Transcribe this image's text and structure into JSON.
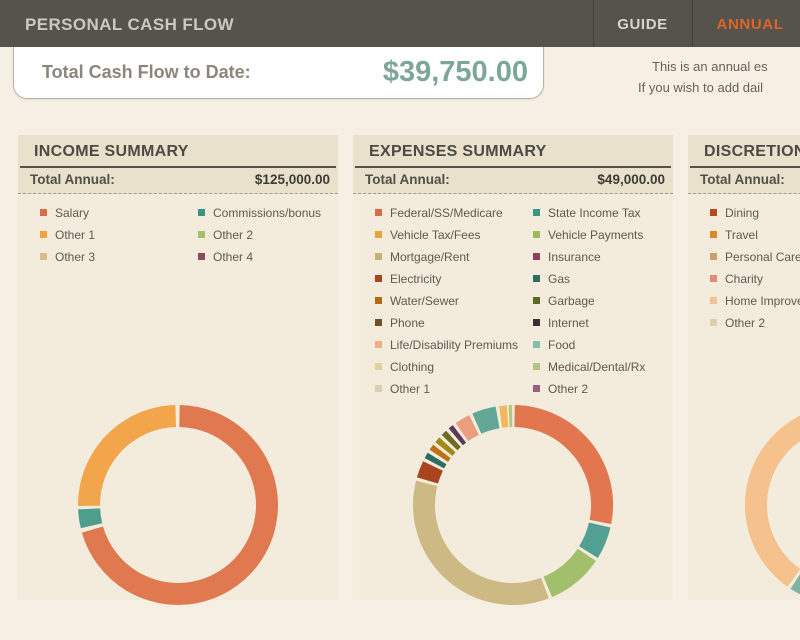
{
  "header": {
    "title": "PERSONAL CASH FLOW",
    "tabs": [
      {
        "label": "GUIDE",
        "active": false
      },
      {
        "label": "ANNUAL",
        "active": true
      }
    ]
  },
  "summary_card": {
    "label": "Total Cash Flow to Date:",
    "value": "$39,750.00"
  },
  "note": {
    "line1": "This is an annual es",
    "line2": "If you wish to add dail"
  },
  "colors": {
    "header_bg": "#55534b",
    "active_tab": "#de6527",
    "cash_value": "#7ca698",
    "page_bg": "#f6f0e4",
    "panel_band": "#eae1cc"
  },
  "panels": [
    {
      "title": "INCOME SUMMARY",
      "total_label": "Total Annual:",
      "total_value": "$125,000.00",
      "legend": [
        {
          "label": "Salary",
          "color": "#d96c4b"
        },
        {
          "label": "Commissions/bonus",
          "color": "#3e9484"
        },
        {
          "label": "Other 1",
          "color": "#efa343"
        },
        {
          "label": "Other 2",
          "color": "#a6bf6d"
        },
        {
          "label": "Other 3",
          "color": "#d6bd8b"
        },
        {
          "label": "Other 4",
          "color": "#8c4a63"
        }
      ]
    },
    {
      "title": "EXPENSES SUMMARY",
      "total_label": "Total Annual:",
      "total_value": "$49,000.00",
      "legend": [
        {
          "label": "Federal/SS/Medicare",
          "color": "#d96c4b"
        },
        {
          "label": "State Income Tax",
          "color": "#3e9484"
        },
        {
          "label": "Vehicle Tax/Fees",
          "color": "#e9a33c"
        },
        {
          "label": "Vehicle Payments",
          "color": "#9fb95e"
        },
        {
          "label": "Mortgage/Rent",
          "color": "#c9b173"
        },
        {
          "label": "Insurance",
          "color": "#8e3f5e"
        },
        {
          "label": "Electricity",
          "color": "#a8441e"
        },
        {
          "label": "Gas",
          "color": "#2e6e62"
        },
        {
          "label": "Water/Sewer",
          "color": "#b36b13"
        },
        {
          "label": "Garbage",
          "color": "#5d6b22"
        },
        {
          "label": "Phone",
          "color": "#70502c"
        },
        {
          "label": "Internet",
          "color": "#3f2b3a"
        },
        {
          "label": "Life/Disability Premiums",
          "color": "#efae83"
        },
        {
          "label": "Food",
          "color": "#7fc0ae"
        },
        {
          "label": "Clothing",
          "color": "#e4cf9d"
        },
        {
          "label": "Medical/Dental/Rx",
          "color": "#b3c489"
        },
        {
          "label": "Other 1",
          "color": "#d9cfb4"
        },
        {
          "label": "Other 2",
          "color": "#9a5e80"
        }
      ]
    },
    {
      "title": "DISCRETIONARY SUMMARY",
      "total_label": "Total Annual:",
      "total_value": "",
      "legend": [
        {
          "label": "Dining",
          "color": "#b54a22"
        },
        {
          "label": "Travel",
          "color": "#de8928"
        },
        {
          "label": "Personal Care",
          "color": "#c9a269"
        },
        {
          "label": "Charity",
          "color": "#e18d73"
        },
        {
          "label": "Home Improvement",
          "color": "#f0c295"
        },
        {
          "label": "Other 2",
          "color": "#ded0ac"
        }
      ]
    }
  ],
  "chart_data": [
    {
      "type": "pie",
      "name": "income-donut",
      "style": "donut",
      "center_svg": [
        160,
        105
      ],
      "outer_radius": 100,
      "inner_radius": 78,
      "segments": [
        {
          "label": "Salary",
          "color": "#e0794f",
          "start_deg": 1,
          "end_deg": 254,
          "approx_percent": 70
        },
        {
          "label": "Commissions/bonus",
          "color": "#4d9e8c",
          "start_deg": 256.5,
          "end_deg": 267.5,
          "approx_percent": 3
        },
        {
          "label": "Other 1",
          "color": "#f2a54a",
          "start_deg": 269.5,
          "end_deg": 358.5,
          "approx_percent": 25
        }
      ]
    },
    {
      "type": "pie",
      "name": "expenses-donut",
      "style": "donut",
      "center_svg": [
        160,
        105
      ],
      "outer_radius": 100,
      "inner_radius": 78,
      "segments": [
        {
          "label": "Federal/SS/Medicare",
          "color": "#e2764e",
          "start_deg": 1,
          "end_deg": 101,
          "approx_percent": 28
        },
        {
          "label": "State Income Tax",
          "color": "#52a093",
          "start_deg": 103,
          "end_deg": 122,
          "approx_percent": 5
        },
        {
          "label": "Vehicle Payments",
          "color": "#a2c06b",
          "start_deg": 124,
          "end_deg": 157,
          "approx_percent": 9
        },
        {
          "label": "Mortgage/Rent",
          "color": "#cdb984",
          "start_deg": 159,
          "end_deg": 284,
          "approx_percent": 35
        },
        {
          "label": "Electricity",
          "color": "#a8441e",
          "start_deg": 286,
          "end_deg": 296,
          "approx_percent": 3
        },
        {
          "label": "Gas",
          "color": "#2e6e62",
          "start_deg": 298,
          "end_deg": 301.5,
          "approx_percent": 1
        },
        {
          "label": "Water/Sewer",
          "color": "#bf7112",
          "start_deg": 303.5,
          "end_deg": 307,
          "approx_percent": 1
        },
        {
          "label": "Garbage",
          "color": "#a08b15",
          "start_deg": 309,
          "end_deg": 312.5,
          "approx_percent": 1
        },
        {
          "label": "Phone",
          "color": "#6f6b24",
          "start_deg": 314.5,
          "end_deg": 318,
          "approx_percent": 1
        },
        {
          "label": "Internet",
          "color": "#5c3a57",
          "start_deg": 320,
          "end_deg": 323,
          "approx_percent": 1
        },
        {
          "label": "Life/Disability Premiums",
          "color": "#eb9e7e",
          "start_deg": 325,
          "end_deg": 334,
          "approx_percent": 2.5
        },
        {
          "label": "Food",
          "color": "#63a897",
          "start_deg": 336,
          "end_deg": 350,
          "approx_percent": 4
        },
        {
          "label": "Clothing",
          "color": "#f3b761",
          "start_deg": 352,
          "end_deg": 356.5,
          "approx_percent": 1.3
        },
        {
          "label": "Medical/Dental/Rx",
          "color": "#b0c882",
          "start_deg": 357.5,
          "end_deg": 359.5,
          "approx_percent": 0.6
        }
      ]
    },
    {
      "type": "pie",
      "name": "discretionary-donut",
      "style": "donut",
      "note": "only left half of chart is inside the viewport; right half clipped at screen edge",
      "center_svg": [
        157,
        105
      ],
      "outer_radius": 100,
      "inner_radius": 78,
      "segments": [
        {
          "label": "maroon segment",
          "color": "#7b4a55",
          "start_deg": 181,
          "end_deg": 186,
          "approx_percent": 1.4
        },
        {
          "label": "salmon segment",
          "color": "#e78f79",
          "start_deg": 188,
          "end_deg": 203,
          "approx_percent": 4
        },
        {
          "label": "teal segment",
          "color": "#80b3a1",
          "start_deg": 205,
          "end_deg": 213,
          "approx_percent": 2
        },
        {
          "label": "peach segment",
          "color": "#f5c28e",
          "start_deg": 215,
          "end_deg": 359,
          "approx_percent": 40
        }
      ]
    }
  ]
}
